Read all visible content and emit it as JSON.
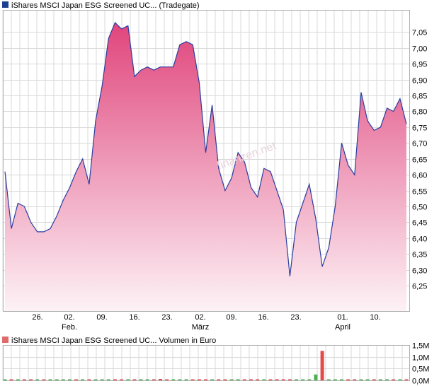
{
  "colors": {
    "grid": "#d9d9d9",
    "frame": "#b0b0b0",
    "price_line": "#2a3d9e",
    "area_top": "#e0457c",
    "area_bottom": "#fdf2f6",
    "legend_price": "#1d3f8f",
    "legend_volume": "#e06b6b",
    "vol_up": "#4caf50",
    "vol_down": "#e34b4b"
  },
  "chart_data": [
    {
      "type": "area",
      "legend": "iShares MSCI Japan ESG Screened UC... (Tradegate)",
      "watermark": "finanzen.net",
      "ylim": [
        6.17,
        7.12
      ],
      "y_ticks": [
        "7,05",
        "7,00",
        "6,95",
        "6,90",
        "6,85",
        "6,80",
        "6,75",
        "6,70",
        "6,65",
        "6,60",
        "6,55",
        "6,50",
        "6,45",
        "6,40",
        "6,35",
        "6,30",
        "6,25"
      ],
      "x_ticks": [
        {
          "label": "26.",
          "sub": ""
        },
        {
          "label": "02.",
          "sub": "Feb."
        },
        {
          "label": "09.",
          "sub": ""
        },
        {
          "label": "16.",
          "sub": ""
        },
        {
          "label": "23.",
          "sub": ""
        },
        {
          "label": "02.",
          "sub": "März"
        },
        {
          "label": "09.",
          "sub": ""
        },
        {
          "label": "16.",
          "sub": ""
        },
        {
          "label": "23.",
          "sub": ""
        },
        {
          "label": "01.",
          "sub": "April"
        },
        {
          "label": "10.",
          "sub": ""
        }
      ],
      "series": [
        {
          "values": [
            6.61,
            6.43,
            6.51,
            6.5,
            6.45,
            6.42,
            6.42,
            6.43,
            6.47,
            6.52,
            6.56,
            6.61,
            6.65,
            6.57,
            6.77,
            6.88,
            7.03,
            7.08,
            7.06,
            7.07,
            6.91,
            6.93,
            6.94,
            6.93,
            6.94,
            6.94,
            6.94,
            7.01,
            7.02,
            7.01,
            6.89,
            6.67,
            6.82,
            6.62,
            6.55,
            6.59,
            6.67,
            6.64,
            6.56,
            6.53,
            6.62,
            6.61,
            6.55,
            6.49,
            6.28,
            6.45,
            6.51,
            6.57,
            6.46,
            6.31,
            6.37,
            6.5,
            6.7,
            6.63,
            6.6,
            6.86,
            6.77,
            6.74,
            6.75,
            6.81,
            6.8,
            6.84,
            6.76
          ]
        }
      ]
    },
    {
      "type": "bar",
      "legend": "iShares MSCI Japan ESG Screened UC... Volumen in Euro",
      "ylim": [
        0,
        1500000
      ],
      "y_ticks": [
        "1,5M",
        "1,0M",
        "0,5M",
        "0,0M"
      ],
      "values": [
        8000,
        6000,
        5000,
        9000,
        4000,
        7000,
        5000,
        6000,
        8000,
        5000,
        4000,
        7000,
        6000,
        5000,
        9000,
        8000,
        6000,
        5000,
        7000,
        8000,
        6000,
        5000,
        4000,
        6000,
        60000,
        7000,
        5000,
        6000,
        8000,
        5000,
        4000,
        6000,
        5000,
        7000,
        8000,
        6000,
        5000,
        4000,
        6000,
        5000,
        7000,
        8000,
        6000,
        5000,
        4000,
        6000,
        7000,
        5000,
        250000,
        1250000,
        6000,
        5000,
        8000,
        6000,
        5000,
        4000,
        40000,
        6000,
        5000,
        7000,
        5000,
        6000,
        5000
      ],
      "up": [
        true,
        false,
        true,
        false,
        false,
        true,
        false,
        true,
        true,
        true,
        true,
        false,
        true,
        false,
        true,
        true,
        true,
        false,
        false,
        true,
        false,
        true,
        true,
        false,
        false,
        false,
        true,
        true,
        true,
        false,
        false,
        false,
        true,
        false,
        false,
        true,
        true,
        false,
        false,
        false,
        true,
        false,
        false,
        false,
        false,
        true,
        true,
        true,
        true,
        false,
        true,
        true,
        true,
        false,
        false,
        true,
        true,
        false,
        true,
        true,
        false,
        true,
        false
      ]
    }
  ]
}
